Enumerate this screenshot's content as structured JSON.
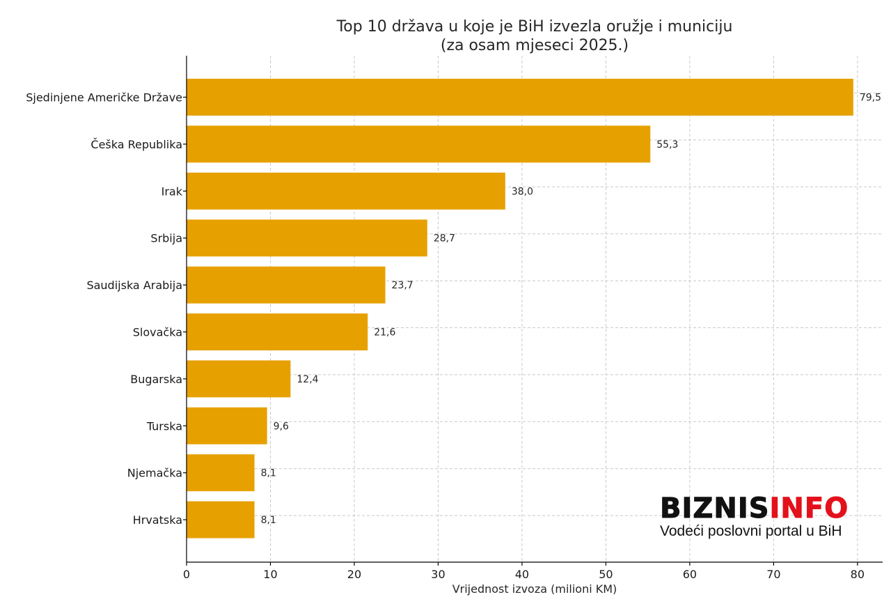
{
  "chart_data": {
    "type": "bar",
    "orientation": "horizontal",
    "title": "Top 10 država u koje je BiH izvezla oružje i municiju",
    "subtitle": "(za osam mjeseci 2025.)",
    "categories": [
      "Sjedinjene Američke Države",
      "Češka Republika",
      "Irak",
      "Srbija",
      "Saudijska Arabija",
      "Slovačka",
      "Bugarska",
      "Turska",
      "Njemačka",
      "Hrvatska"
    ],
    "values": [
      79.5,
      55.3,
      38.0,
      28.7,
      23.7,
      21.6,
      12.4,
      9.6,
      8.1,
      8.1
    ],
    "value_labels": [
      "79,5",
      "55,3",
      "38,0",
      "28,7",
      "23,7",
      "21,6",
      "12,4",
      "9,6",
      "8,1",
      "8,1"
    ],
    "xlabel": "Vrijednost izvoza (milioni KM)",
    "ylabel": "",
    "xlim": [
      0,
      83
    ],
    "xticks": [
      0,
      10,
      20,
      30,
      40,
      50,
      60,
      70,
      80
    ],
    "grid": true,
    "bar_color": "#e6a100"
  },
  "logo": {
    "brand_part1": "BIZNIS",
    "brand_part2": "INFO",
    "tagline": "Vodeći poslovni portal u BiH"
  }
}
